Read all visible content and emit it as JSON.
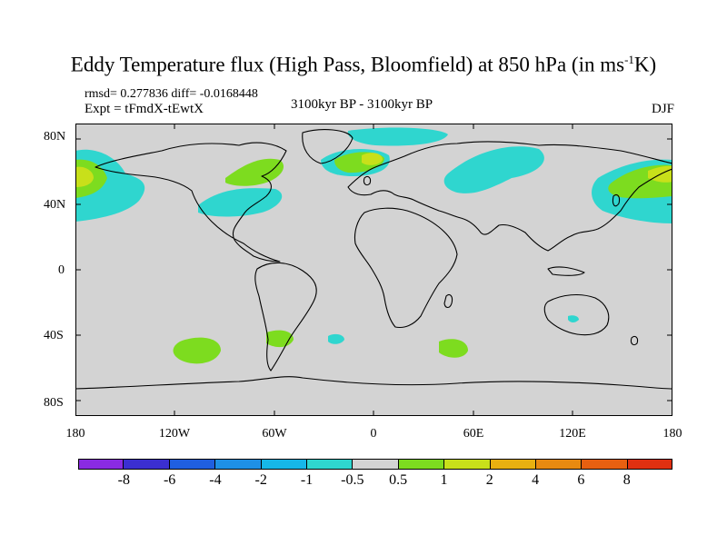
{
  "title": {
    "main": "Eddy Temperature flux (High Pass, Bloomfield) at 850 hPa (in ms",
    "sup": "-1",
    "end": "K)"
  },
  "stats": "rmsd= 0.277836 diff= -0.0168448",
  "expt": "Expt = tFmdX-tEwtX",
  "period": "3100kyr BP - 3100kyr BP",
  "season": "DJF",
  "lat_ticks": [
    "80N",
    "40N",
    "0",
    "40S",
    "80S"
  ],
  "lon_ticks": [
    "180",
    "120W",
    "60W",
    "0",
    "60E",
    "120E",
    "180"
  ],
  "colorbar": {
    "labels": [
      "-8",
      "-6",
      "-4",
      "-2",
      "-1",
      "-0.5",
      "0.5",
      "1",
      "2",
      "4",
      "6",
      "8"
    ],
    "colors": [
      "#8a2be2",
      "#3b2fd1",
      "#1f5fe0",
      "#1e90e6",
      "#16b7e8",
      "#2fd6cf",
      "#d3d3d3",
      "#7ddc1f",
      "#c8e01a",
      "#e8b010",
      "#e88a10",
      "#e86010",
      "#e03010"
    ]
  },
  "map_colors": {
    "land_background": "#d3d3d3",
    "cyan": "#2fd6cf",
    "green": "#7ddc1f",
    "yellow": "#c8e01a",
    "blue": "#16b7e8"
  }
}
